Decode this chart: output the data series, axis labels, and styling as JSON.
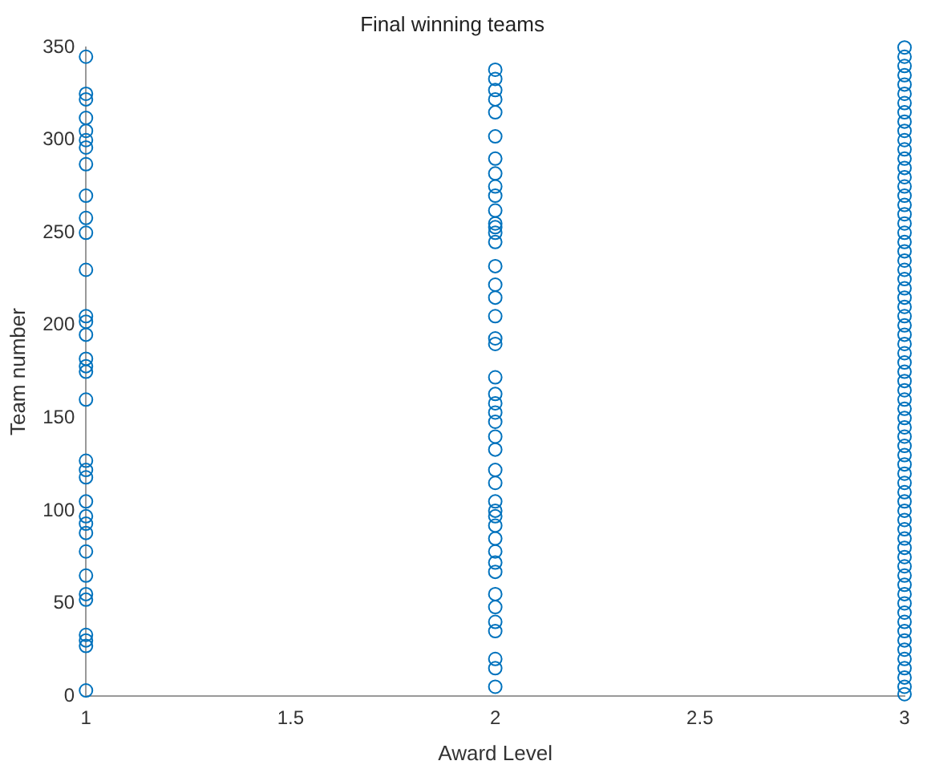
{
  "chart_data": {
    "type": "scatter",
    "title": "Final winning teams",
    "xlabel": "Award Level",
    "ylabel": "Team number",
    "marker": "circle",
    "color": "#0072bd",
    "grid": false,
    "legend": false,
    "xlim": [
      1,
      3
    ],
    "xticks": [
      1,
      1.5,
      2,
      2.5,
      3
    ],
    "ylim": [
      0,
      350
    ],
    "yticks": [
      0,
      50,
      100,
      150,
      200,
      250,
      300,
      350
    ],
    "x": [
      1,
      1,
      1,
      1,
      1,
      1,
      1,
      1,
      1,
      1,
      1,
      1,
      1,
      1,
      1,
      1,
      1,
      1,
      1,
      1,
      1,
      1,
      1,
      1,
      1,
      1,
      1,
      1,
      1,
      1,
      1,
      1,
      1,
      1,
      2,
      2,
      2,
      2,
      2,
      2,
      2,
      2,
      2,
      2,
      2,
      2,
      2,
      2,
      2,
      2,
      2,
      2,
      2,
      2,
      2,
      2,
      2,
      2,
      2,
      2,
      2,
      2,
      2,
      2,
      2,
      2,
      2,
      2,
      2,
      2,
      2,
      2,
      2,
      2,
      2,
      2,
      2,
      2,
      2,
      3,
      3,
      3,
      3,
      3,
      3,
      3,
      3,
      3,
      3,
      3,
      3,
      3,
      3,
      3,
      3,
      3,
      3,
      3,
      3,
      3,
      3,
      3,
      3,
      3,
      3,
      3,
      3,
      3,
      3,
      3,
      3,
      3,
      3,
      3,
      3,
      3,
      3,
      3,
      3,
      3,
      3,
      3,
      3,
      3,
      3,
      3,
      3,
      3,
      3,
      3,
      3,
      3,
      3,
      3,
      3,
      3,
      3,
      3,
      3,
      3,
      3,
      3,
      3,
      3,
      3,
      3,
      3,
      3,
      3,
      3
    ],
    "values": [
      345,
      325,
      322,
      312,
      305,
      300,
      296,
      287,
      270,
      258,
      250,
      230,
      205,
      202,
      195,
      182,
      178,
      175,
      160,
      127,
      122,
      118,
      105,
      97,
      93,
      88,
      78,
      65,
      55,
      52,
      33,
      30,
      27,
      3,
      338,
      333,
      327,
      322,
      315,
      302,
      290,
      282,
      275,
      270,
      262,
      255,
      253,
      250,
      245,
      232,
      222,
      215,
      205,
      193,
      190,
      172,
      163,
      158,
      153,
      148,
      140,
      133,
      122,
      115,
      105,
      100,
      97,
      92,
      85,
      78,
      72,
      67,
      55,
      48,
      40,
      35,
      20,
      15,
      5,
      1,
      5,
      10,
      15,
      20,
      25,
      30,
      35,
      40,
      45,
      50,
      55,
      60,
      65,
      70,
      75,
      80,
      85,
      90,
      95,
      100,
      105,
      110,
      115,
      120,
      125,
      130,
      135,
      140,
      145,
      150,
      155,
      160,
      165,
      170,
      175,
      180,
      185,
      190,
      195,
      200,
      205,
      210,
      215,
      220,
      225,
      230,
      235,
      240,
      245,
      250,
      255,
      260,
      265,
      270,
      275,
      280,
      285,
      290,
      295,
      300,
      305,
      310,
      315,
      320,
      325,
      330,
      335,
      340,
      345,
      350
    ]
  }
}
